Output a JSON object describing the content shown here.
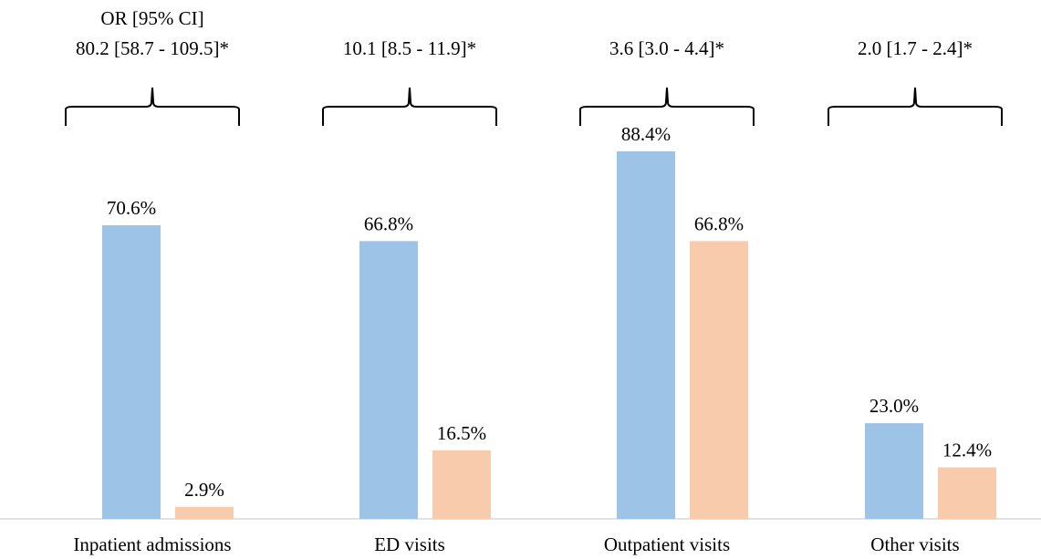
{
  "chart_data": {
    "type": "bar",
    "title": "",
    "xlabel": "",
    "ylabel": "",
    "ylim": [
      0,
      100
    ],
    "grid": false,
    "legend": "none",
    "categories": [
      "Inpatient admissions",
      "ED visits",
      "Outpatient visits",
      "Other visits"
    ],
    "series": [
      {
        "color": "#9DC3E6",
        "values": [
          70.6,
          66.8,
          88.4,
          23.0
        ],
        "labels": [
          "70.6%",
          "66.8%",
          "88.4%",
          "23.0%"
        ]
      },
      {
        "color": "#F8CBAD",
        "values": [
          2.9,
          16.5,
          66.8,
          12.4
        ],
        "labels": [
          "2.9%",
          "16.5%",
          "66.8%",
          "12.4%"
        ]
      }
    ],
    "annotations": [
      {
        "category": "Inpatient admissions",
        "lines": [
          "OR [95% CI]",
          "80.2 [58.7 - 109.5]*"
        ]
      },
      {
        "category": "ED visits",
        "lines": [
          "10.1 [8.5 - 11.9]*"
        ]
      },
      {
        "category": "Outpatient visits",
        "lines": [
          "3.6 [3.0 - 4.4]*"
        ]
      },
      {
        "category": "Other visits",
        "lines": [
          "2.0 [1.7 - 2.4]*"
        ]
      }
    ]
  }
}
